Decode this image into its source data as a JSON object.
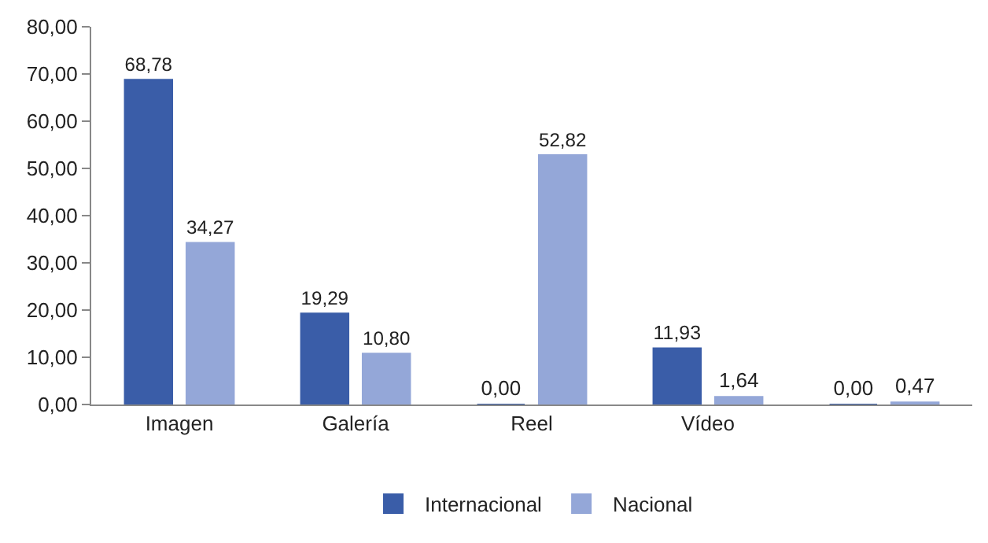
{
  "chart_data": {
    "type": "bar",
    "categories": [
      "Imagen",
      "Galería",
      "Reel",
      "Vídeo",
      null
    ],
    "series": [
      {
        "name": "Internacional",
        "color": "#3a5da8",
        "values": [
          68.78,
          19.29,
          0.0,
          11.93,
          0.0
        ],
        "value_labels": [
          "68,78",
          "19,29",
          "0,00",
          "11,93",
          "0,00"
        ]
      },
      {
        "name": "Nacional",
        "color": "#94a7d8",
        "values": [
          34.27,
          10.8,
          52.82,
          1.64,
          0.47
        ],
        "value_labels": [
          "34,27",
          "10,80",
          "52,82",
          "1,64",
          "0,47"
        ]
      }
    ],
    "ylim": [
      0,
      80
    ],
    "yticks": [
      {
        "value": 0,
        "label": "0,00"
      },
      {
        "value": 10,
        "label": "10,00"
      },
      {
        "value": 20,
        "label": "20,00"
      },
      {
        "value": 30,
        "label": "30,00"
      },
      {
        "value": 40,
        "label": "40,00"
      },
      {
        "value": 50,
        "label": "50,00"
      },
      {
        "value": 60,
        "label": "60,00"
      },
      {
        "value": 70,
        "label": "70,00"
      },
      {
        "value": 80,
        "label": "80,00"
      }
    ],
    "grid": false,
    "legend": "bottom"
  }
}
